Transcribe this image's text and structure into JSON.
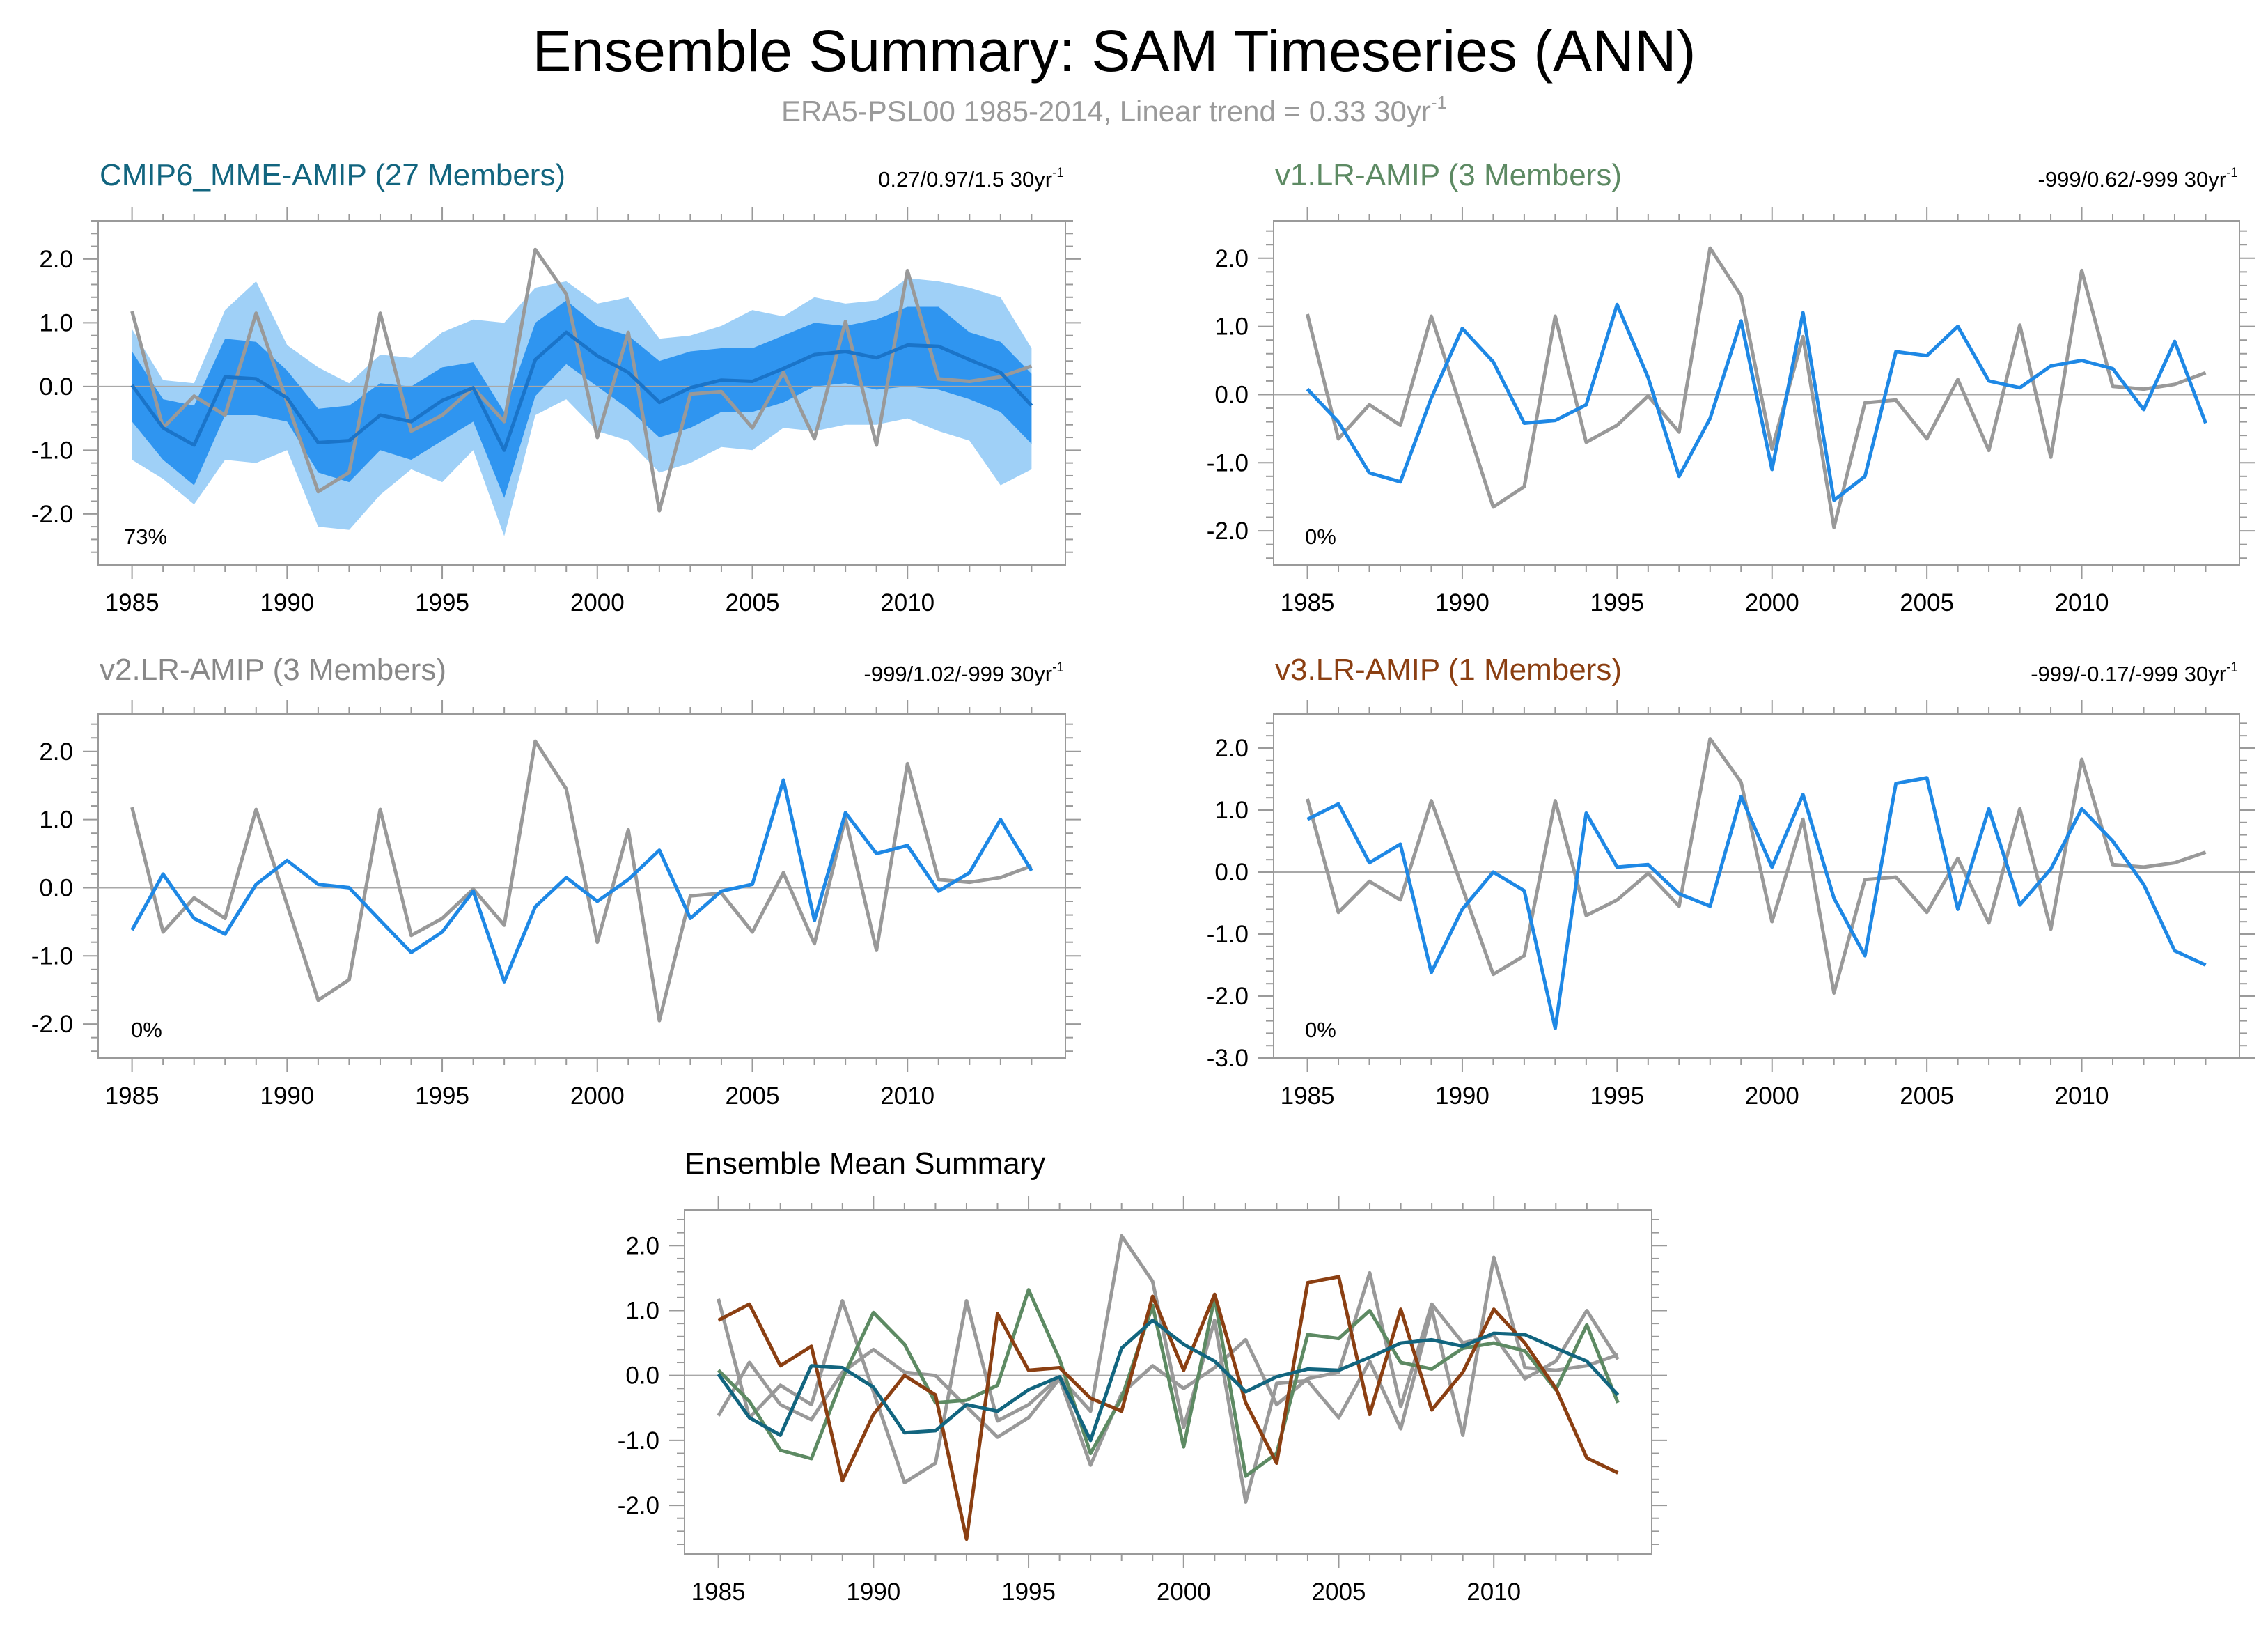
{
  "title": "Ensemble Summary: SAM Timeseries (ANN)",
  "subtitle_main": "ERA5-PSL00 1985-2014, Linear trend = 0.33 30yr",
  "subtitle_sup": "-1",
  "colors": {
    "obs": "#999999",
    "sim": "#1e88e5",
    "band_outer": "#9fd0f7",
    "band_inner": "#2f95f0",
    "ens_mean": "#1a74c9",
    "cmip6": "#12657f",
    "v1": "#5d8a63",
    "v2": "#888888",
    "v3": "#8b3f12"
  },
  "chart_data": [
    {
      "id": "cmip6",
      "type": "line",
      "title": "CMIP6_MME-AMIP (27 Members)",
      "title_color": "#12657f",
      "stats": "0.27/0.97/1.5 30yr",
      "stats_sup": "-1",
      "pct": "73%",
      "x": [
        1985,
        1986,
        1987,
        1988,
        1989,
        1990,
        1991,
        1992,
        1993,
        1994,
        1995,
        1996,
        1997,
        1998,
        1999,
        2000,
        2001,
        2002,
        2003,
        2004,
        2005,
        2006,
        2007,
        2008,
        2009,
        2010,
        2011,
        2012,
        2013,
        2014
      ],
      "xticks": [
        "1985",
        "1990",
        "1995",
        "2000",
        "2005",
        "2010"
      ],
      "xtick_values": [
        1985,
        1990,
        1995,
        2000,
        2005,
        2010
      ],
      "ylim": [
        -2.8,
        2.6
      ],
      "yticks": [
        "2.0",
        "1.0",
        "0.0",
        "-1.0",
        "-2.0"
      ],
      "ytick_values": [
        2.0,
        1.0,
        0.0,
        -1.0,
        -2.0
      ],
      "obs": [
        1.18,
        -0.65,
        -0.15,
        -0.45,
        1.15,
        -0.25,
        -1.65,
        -1.35,
        1.15,
        -0.7,
        -0.45,
        -0.02,
        -0.55,
        2.15,
        1.45,
        -0.8,
        0.85,
        -1.95,
        -0.12,
        -0.08,
        -0.65,
        0.22,
        -0.82,
        1.02,
        -0.92,
        1.82,
        0.12,
        0.08,
        0.15,
        0.32
      ],
      "ensemble_mean": [
        0.02,
        -0.65,
        -0.92,
        0.15,
        0.12,
        -0.18,
        -0.88,
        -0.85,
        -0.45,
        -0.55,
        -0.22,
        -0.02,
        -1.0,
        0.42,
        0.85,
        0.48,
        0.22,
        -0.25,
        -0.02,
        0.1,
        0.08,
        0.28,
        0.5,
        0.55,
        0.45,
        0.65,
        0.63,
        0.42,
        0.22,
        -0.3
      ],
      "band_outer_upper": [
        0.9,
        0.1,
        0.05,
        1.2,
        1.65,
        0.65,
        0.3,
        0.05,
        0.5,
        0.45,
        0.85,
        1.05,
        1.0,
        1.55,
        1.65,
        1.3,
        1.4,
        0.75,
        0.8,
        0.95,
        1.2,
        1.1,
        1.4,
        1.3,
        1.35,
        1.7,
        1.65,
        1.55,
        1.4,
        0.6
      ],
      "band_inner_upper": [
        0.55,
        -0.2,
        -0.3,
        0.75,
        0.7,
        0.25,
        -0.35,
        -0.3,
        0.05,
        0.0,
        0.3,
        0.38,
        -0.4,
        1.0,
        1.35,
        0.95,
        0.8,
        0.4,
        0.55,
        0.6,
        0.6,
        0.8,
        1.0,
        0.95,
        1.05,
        1.25,
        1.25,
        0.85,
        0.7,
        0.2
      ],
      "band_inner_lower": [
        -0.55,
        -1.15,
        -1.55,
        -0.45,
        -0.45,
        -0.55,
        -1.35,
        -1.5,
        -1.0,
        -1.15,
        -0.85,
        -0.55,
        -1.75,
        -0.15,
        0.35,
        0.0,
        -0.35,
        -0.8,
        -0.65,
        -0.4,
        -0.4,
        -0.25,
        0.0,
        0.05,
        -0.05,
        0.0,
        -0.05,
        -0.2,
        -0.4,
        -0.9
      ],
      "band_outer_lower": [
        -1.15,
        -1.45,
        -1.85,
        -1.15,
        -1.2,
        -1.0,
        -2.2,
        -2.25,
        -1.7,
        -1.3,
        -1.5,
        -1.0,
        -2.35,
        -0.45,
        -0.2,
        -0.7,
        -0.85,
        -1.35,
        -1.2,
        -0.95,
        -1.0,
        -0.65,
        -0.7,
        -0.6,
        -0.6,
        -0.5,
        -0.7,
        -0.85,
        -1.55,
        -1.3
      ]
    },
    {
      "id": "v1",
      "type": "line",
      "title": "v1.LR-AMIP (3 Members)",
      "title_color": "#5d8a63",
      "stats": "-999/0.62/-999 30yr",
      "stats_sup": "-1",
      "pct": "0%",
      "x": [
        1985,
        1986,
        1987,
        1988,
        1989,
        1990,
        1991,
        1992,
        1993,
        1994,
        1995,
        1996,
        1997,
        1998,
        1999,
        2000,
        2001,
        2002,
        2003,
        2004,
        2005,
        2006,
        2007,
        2008,
        2009,
        2010,
        2011,
        2012,
        2013,
        2014
      ],
      "xticks": [
        "1985",
        "1990",
        "1995",
        "2000",
        "2005",
        "2010"
      ],
      "xtick_values": [
        1985,
        1990,
        1995,
        2000,
        2005,
        2010
      ],
      "ylim": [
        -2.5,
        2.55
      ],
      "yticks": [
        "2.0",
        "1.0",
        "0.0",
        "-1.0",
        "-2.0"
      ],
      "ytick_values": [
        2.0,
        1.0,
        0.0,
        -1.0,
        -2.0
      ],
      "obs": [
        1.18,
        -0.65,
        -0.15,
        -0.45,
        1.15,
        -0.25,
        -1.65,
        -1.35,
        1.15,
        -0.7,
        -0.45,
        -0.02,
        -0.55,
        2.15,
        1.45,
        -0.8,
        0.85,
        -1.95,
        -0.12,
        -0.08,
        -0.65,
        0.22,
        -0.82,
        1.02,
        -0.92,
        1.82,
        0.12,
        0.08,
        0.15,
        0.32
      ],
      "sim": [
        0.08,
        -0.4,
        -1.15,
        -1.28,
        -0.05,
        0.97,
        0.48,
        -0.42,
        -0.38,
        -0.15,
        1.32,
        0.25,
        -1.2,
        -0.35,
        1.08,
        -1.1,
        1.2,
        -1.55,
        -1.2,
        0.63,
        0.57,
        1.0,
        0.2,
        0.1,
        0.42,
        0.5,
        0.38,
        -0.22,
        0.78,
        -0.42
      ]
    },
    {
      "id": "v2",
      "type": "line",
      "title": "v2.LR-AMIP (3 Members)",
      "title_color": "#888888",
      "stats": "-999/1.02/-999 30yr",
      "stats_sup": "-1",
      "pct": "0%",
      "x": [
        1985,
        1986,
        1987,
        1988,
        1989,
        1990,
        1991,
        1992,
        1993,
        1994,
        1995,
        1996,
        1997,
        1998,
        1999,
        2000,
        2001,
        2002,
        2003,
        2004,
        2005,
        2006,
        2007,
        2008,
        2009,
        2010,
        2011,
        2012,
        2013,
        2014
      ],
      "xticks": [
        "1985",
        "1990",
        "1995",
        "2000",
        "2005",
        "2010"
      ],
      "xtick_values": [
        1985,
        1990,
        1995,
        2000,
        2005,
        2010
      ],
      "ylim": [
        -2.5,
        2.55
      ],
      "yticks": [
        "2.0",
        "1.0",
        "0.0",
        "-1.0",
        "-2.0"
      ],
      "ytick_values": [
        2.0,
        1.0,
        0.0,
        -1.0,
        -2.0
      ],
      "obs": [
        1.18,
        -0.65,
        -0.15,
        -0.45,
        1.15,
        -0.25,
        -1.65,
        -1.35,
        1.15,
        -0.7,
        -0.45,
        -0.02,
        -0.55,
        2.15,
        1.45,
        -0.8,
        0.85,
        -1.95,
        -0.12,
        -0.08,
        -0.65,
        0.22,
        -0.82,
        1.02,
        -0.92,
        1.82,
        0.12,
        0.08,
        0.15,
        0.32
      ],
      "sim": [
        -0.62,
        0.2,
        -0.45,
        -0.68,
        0.05,
        0.4,
        0.05,
        0.0,
        -0.48,
        -0.95,
        -0.65,
        -0.05,
        -1.38,
        -0.28,
        0.15,
        -0.2,
        0.12,
        0.55,
        -0.45,
        -0.05,
        0.05,
        1.58,
        -0.48,
        1.1,
        0.5,
        0.62,
        -0.05,
        0.22,
        1.0,
        0.25
      ]
    },
    {
      "id": "v3",
      "type": "line",
      "title": "v3.LR-AMIP (1 Members)",
      "title_color": "#8b3f12",
      "stats": "-999/-0.17/-999 30yr",
      "stats_sup": "-1",
      "pct": "0%",
      "x": [
        1985,
        1986,
        1987,
        1988,
        1989,
        1990,
        1991,
        1992,
        1993,
        1994,
        1995,
        1996,
        1997,
        1998,
        1999,
        2000,
        2001,
        2002,
        2003,
        2004,
        2005,
        2006,
        2007,
        2008,
        2009,
        2010,
        2011,
        2012,
        2013,
        2014
      ],
      "xticks": [
        "1985",
        "1990",
        "1995",
        "2000",
        "2005",
        "2010"
      ],
      "xtick_values": [
        1985,
        1990,
        1995,
        2000,
        2005,
        2010
      ],
      "ylim": [
        -3.0,
        2.55
      ],
      "yticks": [
        "2.0",
        "1.0",
        "0.0",
        "-1.0",
        "-2.0",
        "-3.0"
      ],
      "ytick_values": [
        2.0,
        1.0,
        0.0,
        -1.0,
        -2.0,
        -3.0
      ],
      "obs": [
        1.18,
        -0.65,
        -0.15,
        -0.45,
        1.15,
        -0.25,
        -1.65,
        -1.35,
        1.15,
        -0.7,
        -0.45,
        -0.02,
        -0.55,
        2.15,
        1.45,
        -0.8,
        0.85,
        -1.95,
        -0.12,
        -0.08,
        -0.65,
        0.22,
        -0.82,
        1.02,
        -0.92,
        1.82,
        0.12,
        0.08,
        0.15,
        0.32
      ],
      "sim": [
        0.85,
        1.1,
        0.15,
        0.45,
        -1.62,
        -0.6,
        0.0,
        -0.3,
        -2.52,
        0.95,
        0.08,
        0.12,
        -0.35,
        -0.55,
        1.22,
        0.08,
        1.25,
        -0.42,
        -1.35,
        1.43,
        1.52,
        -0.6,
        1.02,
        -0.53,
        0.05,
        1.02,
        0.5,
        -0.2,
        -1.27,
        -1.5
      ]
    },
    {
      "id": "mean",
      "type": "line",
      "title": "Ensemble Mean Summary",
      "x": [
        1985,
        1986,
        1987,
        1988,
        1989,
        1990,
        1991,
        1992,
        1993,
        1994,
        1995,
        1996,
        1997,
        1998,
        1999,
        2000,
        2001,
        2002,
        2003,
        2004,
        2005,
        2006,
        2007,
        2008,
        2009,
        2010,
        2011,
        2012,
        2013,
        2014
      ],
      "xticks": [
        "1985",
        "1990",
        "1995",
        "2000",
        "2005",
        "2010"
      ],
      "xtick_values": [
        1985,
        1990,
        1995,
        2000,
        2005,
        2010
      ],
      "ylim": [
        -2.75,
        2.55
      ],
      "yticks": [
        "2.0",
        "1.0",
        "0.0",
        "-1.0",
        "-2.0"
      ],
      "ytick_values": [
        2.0,
        1.0,
        0.0,
        -1.0,
        -2.0
      ],
      "series": [
        {
          "name": "ERA5-PSL00",
          "color": "#999999",
          "values": [
            1.18,
            -0.65,
            -0.15,
            -0.45,
            1.15,
            -0.25,
            -1.65,
            -1.35,
            1.15,
            -0.7,
            -0.45,
            -0.02,
            -0.55,
            2.15,
            1.45,
            -0.8,
            0.85,
            -1.95,
            -0.12,
            -0.08,
            -0.65,
            0.22,
            -0.82,
            1.02,
            -0.92,
            1.82,
            0.12,
            0.08,
            0.15,
            0.32
          ]
        },
        {
          "name": "v2.LR-AMIP",
          "color": "#999999",
          "values": [
            -0.62,
            0.2,
            -0.45,
            -0.68,
            0.05,
            0.4,
            0.05,
            0.0,
            -0.48,
            -0.95,
            -0.65,
            -0.05,
            -1.38,
            -0.28,
            0.15,
            -0.2,
            0.12,
            0.55,
            -0.45,
            -0.05,
            0.05,
            1.58,
            -0.48,
            1.1,
            0.5,
            0.62,
            -0.05,
            0.22,
            1.0,
            0.25
          ]
        },
        {
          "name": "v1.LR-AMIP",
          "color": "#5d8a63",
          "values": [
            0.08,
            -0.4,
            -1.15,
            -1.28,
            -0.05,
            0.97,
            0.48,
            -0.42,
            -0.38,
            -0.15,
            1.32,
            0.25,
            -1.2,
            -0.35,
            1.08,
            -1.1,
            1.2,
            -1.55,
            -1.2,
            0.63,
            0.57,
            1.0,
            0.2,
            0.1,
            0.42,
            0.5,
            0.38,
            -0.22,
            0.78,
            -0.42
          ]
        },
        {
          "name": "v3.LR-AMIP",
          "color": "#8b3f12",
          "values": [
            0.85,
            1.1,
            0.15,
            0.45,
            -1.62,
            -0.6,
            0.0,
            -0.3,
            -2.52,
            0.95,
            0.08,
            0.12,
            -0.35,
            -0.55,
            1.22,
            0.08,
            1.25,
            -0.42,
            -1.35,
            1.43,
            1.52,
            -0.6,
            1.02,
            -0.53,
            0.05,
            1.02,
            0.5,
            -0.2,
            -1.27,
            -1.5
          ]
        },
        {
          "name": "CMIP6_MME-AMIP",
          "color": "#12657f",
          "values": [
            0.02,
            -0.65,
            -0.92,
            0.15,
            0.12,
            -0.18,
            -0.88,
            -0.85,
            -0.45,
            -0.55,
            -0.22,
            -0.02,
            -1.0,
            0.42,
            0.85,
            0.48,
            0.22,
            -0.25,
            -0.02,
            0.1,
            0.08,
            0.28,
            0.5,
            0.55,
            0.45,
            0.65,
            0.63,
            0.42,
            0.22,
            -0.3
          ]
        }
      ]
    }
  ]
}
